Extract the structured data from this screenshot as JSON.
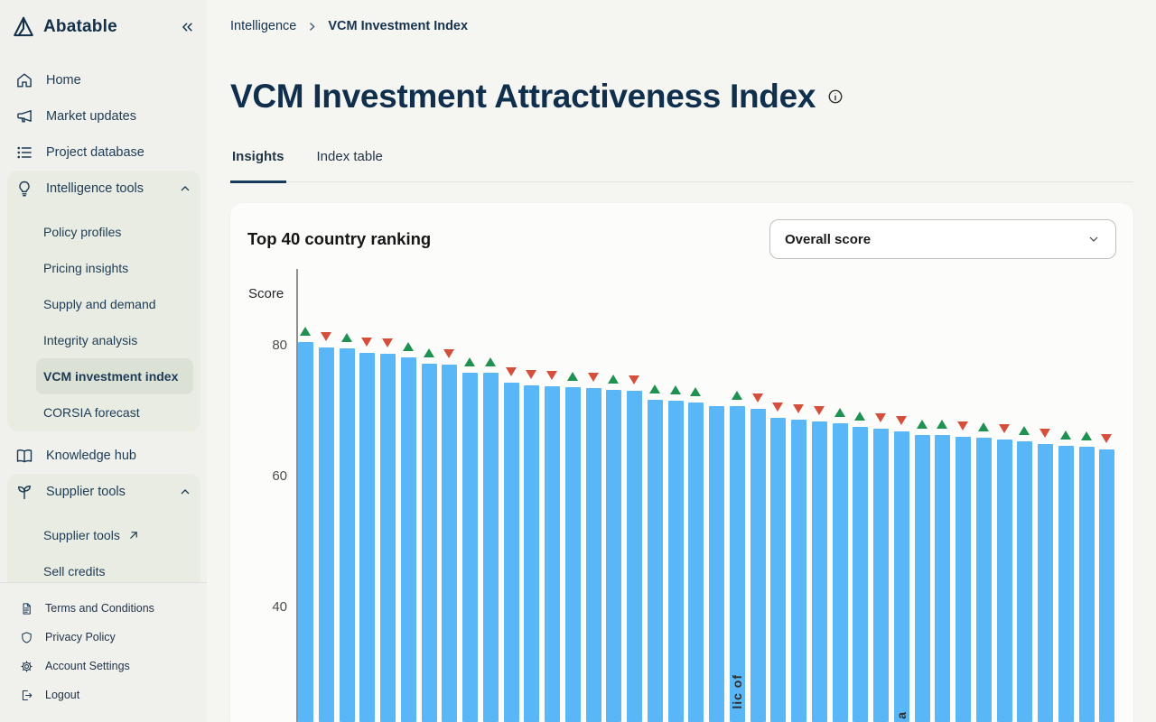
{
  "sidebar": {
    "brand": "Abatable",
    "nav": [
      {
        "type": "item",
        "label": "Home",
        "icon": "home"
      },
      {
        "type": "item",
        "label": "Market updates",
        "icon": "megaphone"
      },
      {
        "type": "item",
        "label": "Project database",
        "icon": "list"
      },
      {
        "type": "group",
        "label": "Intelligence tools",
        "icon": "lightbulb",
        "expanded": true,
        "children": [
          {
            "label": "Policy profiles"
          },
          {
            "label": "Pricing insights"
          },
          {
            "label": "Supply and demand"
          },
          {
            "label": "Integrity analysis"
          },
          {
            "label": "VCM investment index",
            "selected": true
          },
          {
            "label": "CORSIA forecast"
          }
        ]
      },
      {
        "type": "item",
        "label": "Knowledge hub",
        "icon": "book"
      },
      {
        "type": "group",
        "label": "Supplier tools",
        "icon": "seedling",
        "expanded": true,
        "children": [
          {
            "label": "Supplier tools",
            "external": true
          },
          {
            "label": "Sell credits"
          }
        ]
      }
    ],
    "footer": [
      {
        "label": "Terms and Conditions",
        "icon": "document"
      },
      {
        "label": "Privacy Policy",
        "icon": "shield"
      },
      {
        "label": "Account Settings",
        "icon": "gear"
      },
      {
        "label": "Logout",
        "icon": "logout"
      }
    ]
  },
  "header": {
    "breadcrumb": [
      "Intelligence",
      "VCM Investment Index"
    ],
    "title": "VCM Investment Attractiveness Index",
    "tabs": [
      {
        "label": "Insights",
        "active": true
      },
      {
        "label": "Index table",
        "active": false
      }
    ]
  },
  "card": {
    "title": "Top 40 country ranking",
    "dropdown_value": "Overall score"
  },
  "chart_data": {
    "type": "bar",
    "title": "Top 40 country ranking",
    "ylabel": "Score",
    "yticks": [
      80,
      60,
      40
    ],
    "ylim": [
      0,
      85
    ],
    "grid": false,
    "legend": "none",
    "note": "bottom of chart and x-axis country labels are cut off by viewport; rank-change arrows shown above each bar",
    "bar_color": "#5ab7f7",
    "up_color": "#1f9150",
    "down_color": "#d4503c",
    "x_labels_visible_fragments": [
      {
        "bar": 22,
        "text": "lic of"
      },
      {
        "bar": 30,
        "text": "a"
      }
    ],
    "bars": [
      {
        "rank": 1,
        "value": 80.6,
        "change": "up"
      },
      {
        "rank": 2,
        "value": 79.7,
        "change": "down"
      },
      {
        "rank": 3,
        "value": 79.6,
        "change": "up"
      },
      {
        "rank": 4,
        "value": 78.9,
        "change": "down"
      },
      {
        "rank": 5,
        "value": 78.7,
        "change": "down"
      },
      {
        "rank": 6,
        "value": 78.2,
        "change": "up"
      },
      {
        "rank": 7,
        "value": 77.3,
        "change": "up"
      },
      {
        "rank": 8,
        "value": 77.1,
        "change": "down"
      },
      {
        "rank": 9,
        "value": 75.9,
        "change": "up"
      },
      {
        "rank": 10,
        "value": 75.8,
        "change": "up"
      },
      {
        "rank": 11,
        "value": 74.3,
        "change": "down"
      },
      {
        "rank": 12,
        "value": 73.9,
        "change": "down"
      },
      {
        "rank": 13,
        "value": 73.8,
        "change": "down"
      },
      {
        "rank": 14,
        "value": 73.7,
        "change": "up"
      },
      {
        "rank": 15,
        "value": 73.5,
        "change": "down"
      },
      {
        "rank": 16,
        "value": 73.3,
        "change": "up"
      },
      {
        "rank": 17,
        "value": 73.1,
        "change": "down"
      },
      {
        "rank": 18,
        "value": 71.7,
        "change": "up"
      },
      {
        "rank": 19,
        "value": 71.6,
        "change": "up"
      },
      {
        "rank": 20,
        "value": 71.3,
        "change": "up"
      },
      {
        "rank": 21,
        "value": 70.8,
        "change": "none"
      },
      {
        "rank": 22,
        "value": 70.7,
        "change": "up"
      },
      {
        "rank": 23,
        "value": 70.4,
        "change": "down"
      },
      {
        "rank": 24,
        "value": 69.0,
        "change": "down"
      },
      {
        "rank": 25,
        "value": 68.7,
        "change": "down"
      },
      {
        "rank": 26,
        "value": 68.4,
        "change": "down"
      },
      {
        "rank": 27,
        "value": 68.2,
        "change": "up"
      },
      {
        "rank": 28,
        "value": 67.6,
        "change": "up"
      },
      {
        "rank": 29,
        "value": 67.3,
        "change": "down"
      },
      {
        "rank": 30,
        "value": 66.9,
        "change": "down"
      },
      {
        "rank": 31,
        "value": 66.4,
        "change": "up"
      },
      {
        "rank": 32,
        "value": 66.3,
        "change": "up"
      },
      {
        "rank": 33,
        "value": 66.1,
        "change": "down"
      },
      {
        "rank": 34,
        "value": 66.0,
        "change": "up"
      },
      {
        "rank": 35,
        "value": 65.6,
        "change": "down"
      },
      {
        "rank": 36,
        "value": 65.4,
        "change": "up"
      },
      {
        "rank": 37,
        "value": 65.0,
        "change": "down"
      },
      {
        "rank": 38,
        "value": 64.7,
        "change": "up"
      },
      {
        "rank": 39,
        "value": 64.6,
        "change": "up"
      },
      {
        "rank": 40,
        "value": 64.2,
        "change": "down"
      }
    ]
  }
}
